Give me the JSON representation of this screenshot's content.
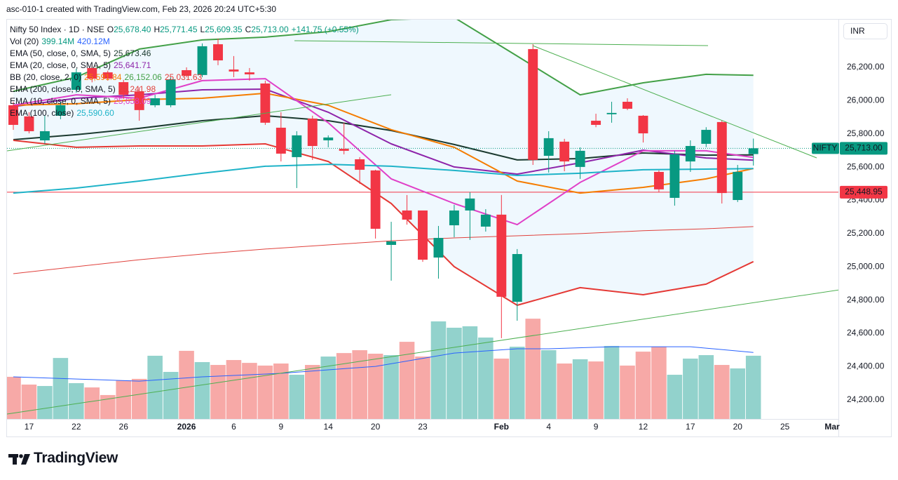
{
  "header": "asc-010-1 created with TradingView.com, Feb 23, 2026 20:24 UTC+5:30",
  "footer_logo": "TradingView",
  "chart_data": {
    "type": "candlestick",
    "symbol": "Nifty 50 Index · 1D · NSE",
    "ohlc_legend": [
      {
        "label": "O",
        "value": "25,678.40"
      },
      {
        "label": "H",
        "value": "25,771.45"
      },
      {
        "label": "L",
        "value": "25,609.35"
      },
      {
        "label": "C",
        "value": "25,713.00"
      }
    ],
    "change_label": "+141.75 (+0.55%)",
    "currency": "INR",
    "up_color": "#089981",
    "down_color": "#f23645",
    "x": [
      0,
      1,
      2,
      3,
      4,
      5,
      6,
      7,
      8,
      9,
      10,
      11,
      12,
      13,
      14,
      15,
      16,
      17,
      18,
      19,
      20,
      21,
      22,
      23,
      24,
      25,
      26,
      27,
      28,
      29,
      30,
      31,
      32,
      33,
      34,
      35,
      36,
      37,
      38,
      39,
      40,
      41,
      42,
      43,
      44,
      45,
      46,
      47
    ],
    "open": [
      25972,
      25905,
      25761,
      25909,
      26065,
      26196,
      26170,
      26111,
      26056,
      25972,
      25972,
      26183,
      26154,
      26339,
      26187,
      26170,
      26103,
      25837,
      25660,
      25892,
      25761,
      25710,
      25647,
      25580,
      25132,
      25339,
      25339,
      25056,
      25250,
      25339,
      25242,
      25314,
      24790,
      26310,
      25668,
      25753,
      25601,
      25879,
      25918,
      25993,
      25909,
      25571,
      25415,
      25634,
      25740,
      25871,
      25402,
      25678.4
    ],
    "high": [
      25993,
      25930,
      25909,
      25993,
      26192,
      26210,
      26180,
      26125,
      26080,
      26035,
      26140,
      26200,
      26344,
      26373,
      26268,
      26196,
      26120,
      25930,
      25816,
      25909,
      25791,
      25867,
      25660,
      25584,
      25271,
      25432,
      25339,
      25246,
      25373,
      25449,
      25347,
      25432,
      25107,
      26339,
      25816,
      25770,
      25719,
      25921,
      25993,
      26014,
      25913,
      25580,
      25698,
      25761,
      25840,
      25880,
      25613,
      25771.45
    ],
    "low": [
      25824,
      25803,
      25740,
      25888,
      26048,
      26110,
      26120,
      26010,
      25879,
      25960,
      25960,
      26140,
      26141,
      26213,
      26141,
      26120,
      25854,
      25634,
      25474,
      25643,
      25719,
      25677,
      25499,
      25170,
      24917,
      25254,
      25030,
      24929,
      25178,
      25162,
      25212,
      24571,
      24676,
      25613,
      25567,
      25575,
      25529,
      25840,
      25867,
      25943,
      25748,
      25450,
      25368,
      25571,
      25720,
      25381,
      25390,
      25609.35
    ],
    "close": [
      25854,
      25816,
      25816,
      25972,
      26170,
      26132,
      26132,
      26035,
      25943,
      26014,
      26128,
      26149,
      26327,
      26242,
      26175,
      26158,
      25867,
      25681,
      25791,
      25727,
      25778,
      25698,
      25584,
      25229,
      25153,
      25284,
      25043,
      25174,
      25339,
      25411,
      25314,
      24820,
      25077,
      25643,
      25774,
      25634,
      25698,
      25854,
      25926,
      25951,
      25803,
      25466,
      25677,
      25727,
      25824,
      25444,
      25571.25,
      25713
    ],
    "xlim": [
      -0.4,
      52.4
    ],
    "xticks": [
      {
        "value": 1,
        "label": "17"
      },
      {
        "value": 4,
        "label": "22"
      },
      {
        "value": 7,
        "label": "26"
      },
      {
        "value": 11,
        "label": "2026",
        "bold": true
      },
      {
        "value": 14,
        "label": "6"
      },
      {
        "value": 17,
        "label": "9"
      },
      {
        "value": 20,
        "label": "14"
      },
      {
        "value": 23,
        "label": "20"
      },
      {
        "value": 26,
        "label": "23"
      },
      {
        "value": 31,
        "label": "Feb",
        "bold": true
      },
      {
        "value": 34,
        "label": "4"
      },
      {
        "value": 37,
        "label": "9"
      },
      {
        "value": 40,
        "label": "12"
      },
      {
        "value": 43,
        "label": "17"
      },
      {
        "value": 46,
        "label": "20"
      },
      {
        "value": 49,
        "label": "25"
      },
      {
        "value": 52,
        "label": "Mar",
        "bold": true
      }
    ],
    "ylim": [
      24085,
      26487
    ],
    "yticks": [
      {
        "value": 24200,
        "label": "24,200.00"
      },
      {
        "value": 24400,
        "label": "24,400.00"
      },
      {
        "value": 24600,
        "label": "24,600.00"
      },
      {
        "value": 24800,
        "label": "24,800.00"
      },
      {
        "value": 25000,
        "label": "25,000.00"
      },
      {
        "value": 25200,
        "label": "25,200.00"
      },
      {
        "value": 25400,
        "label": "25,400.00"
      },
      {
        "value": 25600,
        "label": "25,600.00"
      },
      {
        "value": 25800,
        "label": "25,800.00"
      },
      {
        "value": 26000,
        "label": "26,000.00"
      },
      {
        "value": 26200,
        "label": "26,200.00"
      }
    ],
    "grid": false,
    "last_price": {
      "name": "NIFTY",
      "label": "25,713.00"
    },
    "price_line": {
      "value": 25448.95,
      "label": "25,448.95",
      "color": "#f23645"
    },
    "volume": {
      "name": "Vol (20)",
      "axis": "y2",
      "up_color": "#92d2cc",
      "down_color": "#f7a9a7",
      "values": [
        266,
        217,
        208,
        385,
        226,
        199,
        151,
        244,
        253,
        399,
        297,
        430,
        359,
        341,
        372,
        354,
        337,
        350,
        279,
        341,
        394,
        416,
        434,
        412,
        403,
        487,
        394,
        616,
        576,
        585,
        514,
        381,
        456,
        633,
        434,
        350,
        377,
        363,
        461,
        337,
        425,
        456,
        279,
        381,
        403,
        341,
        319,
        399.14
      ],
      "value_label": "399.14M",
      "ma": {
        "color": "#2962ff",
        "x": [
          0,
          8,
          12,
          17,
          23,
          28,
          32,
          34,
          38,
          43,
          47
        ],
        "values": [
          266,
          239,
          266,
          288,
          332,
          416,
          443,
          443,
          456,
          456,
          420.12
        ],
        "value_label": "420.12M"
      }
    },
    "y2lim": [
      0,
      2521
    ],
    "indicators": [
      {
        "name": "EMA (50, close, 0, SMA, 5)",
        "lines": [
          {
            "color": "#1b3a2f",
            "width": 2,
            "x": [
              0,
              4,
              8,
              12,
              16,
              20,
              24,
              28,
              32,
              36,
              40,
              44,
              47
            ],
            "values": [
              25765,
              25795,
              25833,
              25879,
              25909,
              25879,
              25820,
              25736,
              25643,
              25651,
              25685,
              25672,
              25673.46
            ],
            "value_label": "25,673.46"
          }
        ]
      },
      {
        "name": "EMA (20, close, 0, SMA, 5)",
        "lines": [
          {
            "color": "#8e24aa",
            "width": 2,
            "x": [
              0,
              4,
              8,
              12,
              16,
              20,
              24,
              28,
              32,
              36,
              40,
              44,
              47
            ],
            "values": [
              25964,
              26014,
              26035,
              26065,
              26069,
              25930,
              25740,
              25601,
              25558,
              25626,
              25702,
              25655,
              25641.71
            ],
            "value_label": "25,641.71"
          }
        ]
      },
      {
        "name": "BB (20, close, 2, 0)",
        "fill": "#2196f3",
        "lines": [
          {
            "color": "#f57c00",
            "width": 2,
            "x": [
              0,
              4,
              8,
              12,
              16,
              20,
              24,
              28,
              32,
              36,
              40,
              44,
              47
            ],
            "values": [
              25972,
              25981,
              26006,
              26014,
              26044,
              25972,
              25825,
              25719,
              25516,
              25444,
              25478,
              25529,
              25591.84
            ],
            "value_label": "25,591.84"
          },
          {
            "color": "#43a047",
            "width": 2,
            "x": [
              0,
              4,
              8,
              12,
              16,
              20,
              24,
              28,
              32,
              36,
              40,
              44,
              47
            ],
            "values": [
              26056,
              26141,
              26310,
              26365,
              26382,
              26415,
              26487,
              26500,
              26268,
              26035,
              26107,
              26158,
              26152.06
            ],
            "value_label": "26,152.06"
          },
          {
            "color": "#e53935",
            "width": 2,
            "x": [
              0,
              4,
              8,
              12,
              16,
              20,
              24,
              28,
              32,
              36,
              40,
              44,
              47
            ],
            "values": [
              25761,
              25719,
              25727,
              25727,
              25740,
              25634,
              25381,
              25001,
              24769,
              24875,
              24832,
              24896,
              25031.63
            ],
            "value_label": "25,031.63"
          }
        ]
      },
      {
        "name": "EMA (200, close, 0, SMA, 5)",
        "lines": [
          {
            "color": "#e0413c",
            "width": 1,
            "x": [
              0,
              4,
              8,
              12,
              16,
              20,
              24,
              28,
              32,
              36,
              40,
              44,
              47
            ],
            "values": [
              24959,
              25001,
              25043,
              25077,
              25107,
              25132,
              25157,
              25174,
              25187,
              25200,
              25217,
              25229,
              25241.98
            ],
            "value_label": "25,241.98"
          }
        ]
      },
      {
        "name": "EMA (10, close, 0, SMA, 5)",
        "lines": [
          {
            "color": "#e040c8",
            "width": 2,
            "x": [
              0,
              4,
              8,
              12,
              16,
              20,
              24,
              28,
              32,
              36,
              40,
              44,
              47
            ],
            "values": [
              25972,
              26035,
              26014,
              26120,
              26132,
              25867,
              25529,
              25381,
              25254,
              25508,
              25698,
              25698,
              25658.09
            ],
            "value_label": "25,658.09"
          }
        ]
      },
      {
        "name": "EMA (100, close)",
        "lines": [
          {
            "color": "#1eb3c8",
            "width": 2,
            "x": [
              0,
              4,
              8,
              12,
              16,
              20,
              24,
              28,
              32,
              36,
              40,
              44,
              47
            ],
            "values": [
              25444,
              25474,
              25516,
              25563,
              25605,
              25617,
              25605,
              25580,
              25550,
              25563,
              25584,
              25588,
              25590.6
            ],
            "value_label": "25,590.60"
          }
        ]
      }
    ]
  }
}
